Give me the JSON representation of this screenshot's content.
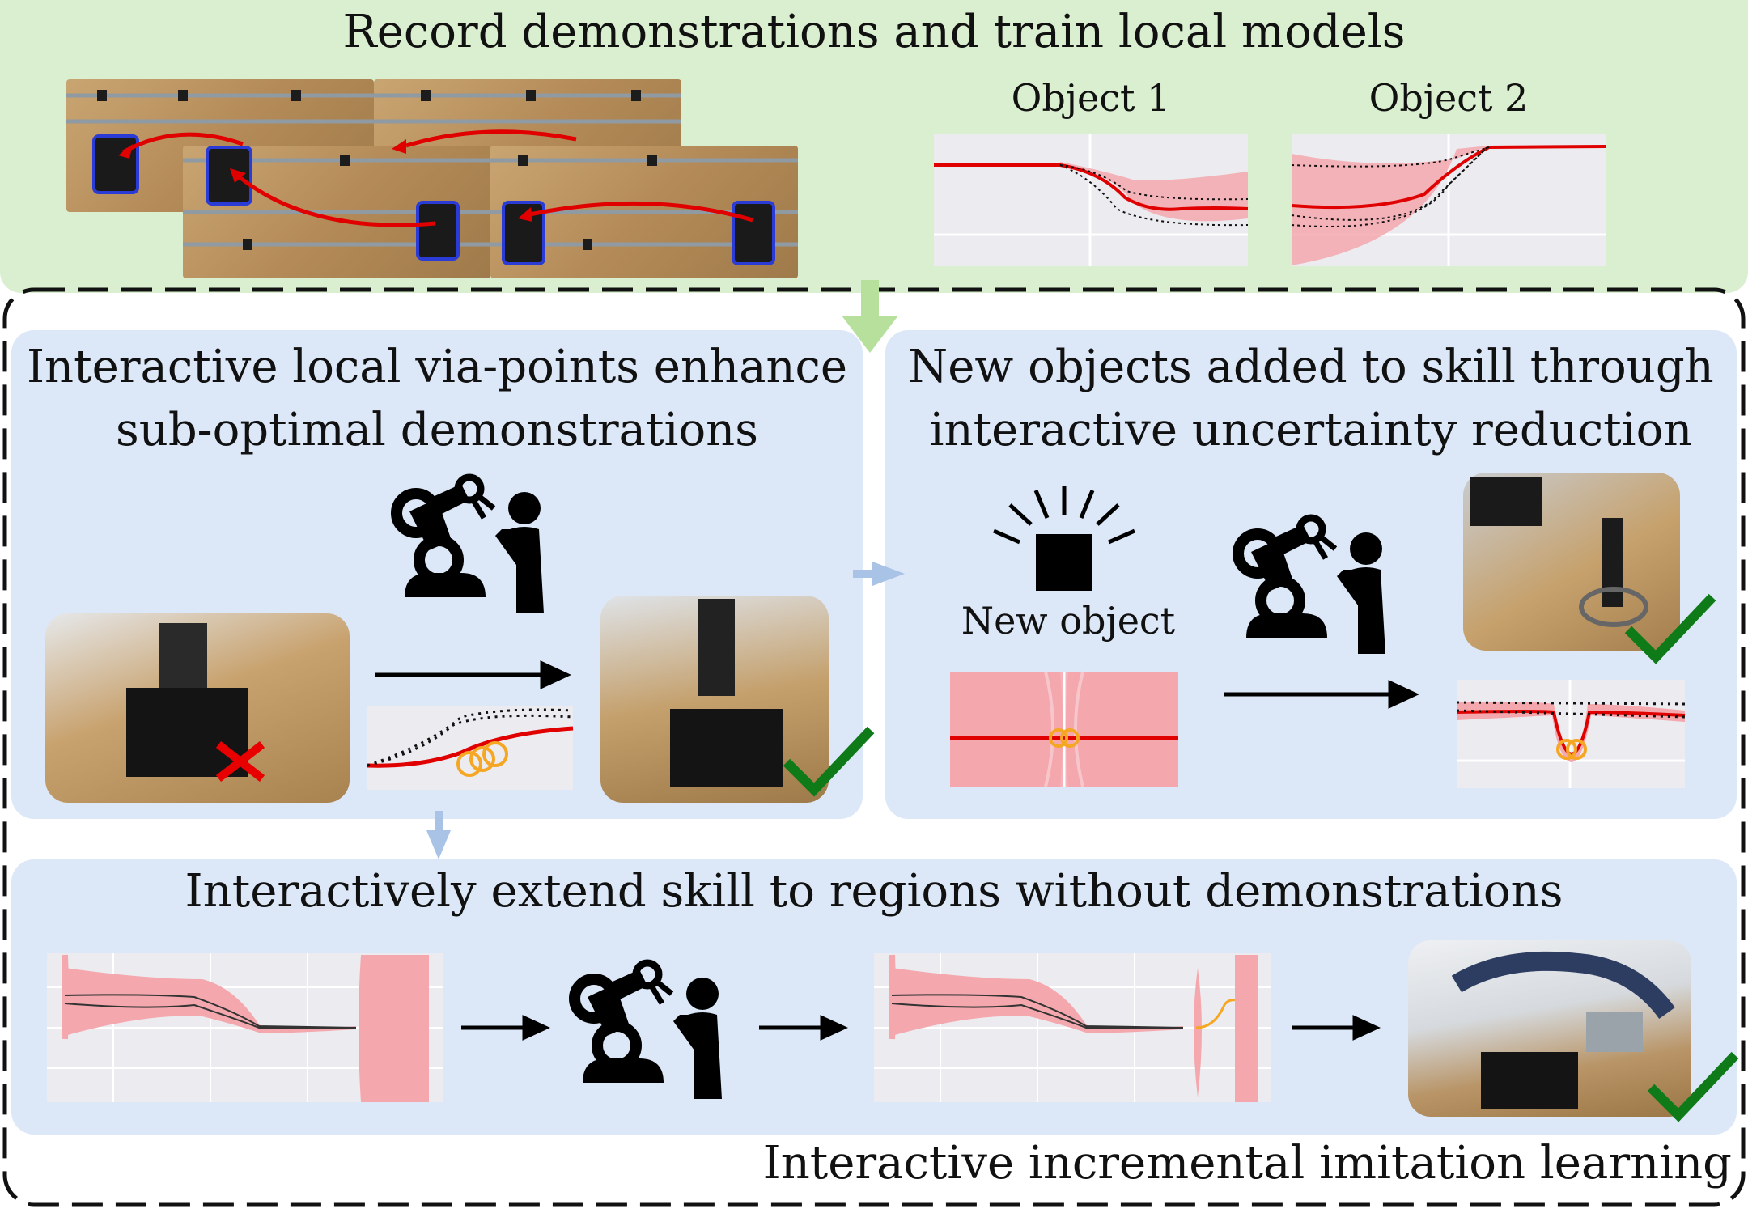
{
  "header": {
    "title": "Record demonstrations and train local models",
    "object1_label": "Object 1",
    "object2_label": "Object 2"
  },
  "via_points": {
    "title_line1": "Interactive local via-points enhance",
    "title_line2": "sub-optimal demonstrations"
  },
  "new_objects": {
    "title_line1": "New objects added to skill through",
    "title_line2": "interactive uncertainty reduction",
    "new_object_label": "New object"
  },
  "extend": {
    "title": "Interactively extend skill to regions without demonstrations",
    "unknown_mark": "?"
  },
  "footer": {
    "caption": "Interactive incremental imitation learning"
  },
  "colors": {
    "green_panel": "#d9efcf",
    "blue_panel": "#dce8f8",
    "trajectory_red": "#e00000",
    "uncertainty_pink": "#f4a8ae",
    "via_point_orange": "#f5a623",
    "check_green": "#0e7a18"
  },
  "icons": [
    "robot-human-icon",
    "new-object-icon",
    "checkmark-icon",
    "cross-icon",
    "arrow-right-icon",
    "arrow-down-icon"
  ]
}
